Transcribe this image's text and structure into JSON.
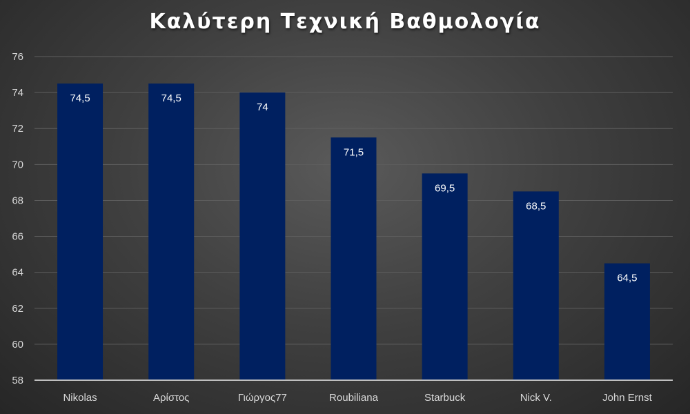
{
  "chart_data": {
    "type": "bar",
    "title": "Καλύτερη Τεχνική Βαθμολογία",
    "xlabel": "",
    "ylabel": "",
    "categories": [
      "Nikolas",
      "Αρίστος",
      "Γιώργος77",
      "Roubiliana",
      "Starbuck",
      "Nick V.",
      "John Ernst"
    ],
    "values": [
      74.5,
      74.5,
      74,
      71.5,
      69.5,
      68.5,
      64.5
    ],
    "data_labels": [
      "74,5",
      "74,5",
      "74",
      "71,5",
      "69,5",
      "68,5",
      "64,5"
    ],
    "ylim": [
      58,
      76
    ],
    "yticks": [
      "58",
      "60",
      "62",
      "64",
      "66",
      "68",
      "70",
      "72",
      "74",
      "76"
    ],
    "grid": true,
    "legend": "none",
    "colors": {
      "bar": "#002060",
      "gridline": "#5e5e5e",
      "axis": "#bfbfbf"
    }
  }
}
